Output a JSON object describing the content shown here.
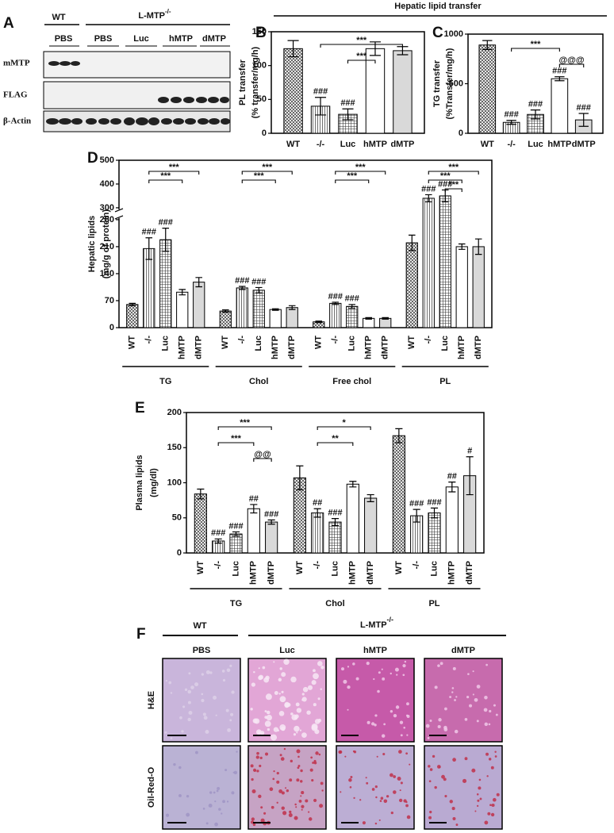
{
  "header": "Hepatic lipid transfer",
  "blot": {
    "panel": "A",
    "wt": "WT",
    "ko": {
      "text": "L-MTP",
      "sup": "-/-"
    },
    "lanes": [
      "PBS",
      "PBS",
      "Luc",
      "hMTP",
      "dMTP"
    ],
    "rows": [
      "mMTP",
      "FLAG",
      "β-Actin"
    ]
  },
  "chart_data": [
    {
      "type": "bar",
      "panel": "B",
      "ylabel": [
        "PL transfer",
        "(% transfer/mg/h)"
      ],
      "categories": [
        "WT",
        "-/-",
        "Luc",
        "hMTP",
        "dMTP"
      ],
      "values": [
        125,
        40,
        28,
        125,
        122
      ],
      "errors": [
        12,
        13,
        8,
        10,
        6
      ],
      "bar_labels": [
        null,
        "###",
        "###",
        null,
        null
      ],
      "brackets": [
        {
          "from": 1,
          "to": 4,
          "label": "***"
        },
        {
          "from": 2,
          "to": 3,
          "label": "***"
        }
      ],
      "bar_fills": [
        "crosshatch",
        "vertical",
        "grid",
        "#ffffff",
        "#d9d9d9"
      ],
      "ylim": [
        0,
        150
      ],
      "yticks": [
        0,
        50,
        100,
        150
      ]
    },
    {
      "type": "bar",
      "panel": "C",
      "ylabel": [
        "TG transfer",
        "(%Transfer/mg/h)"
      ],
      "categories": [
        "WT",
        "-/-",
        "Luc",
        "hMTP",
        "dMTP"
      ],
      "values": [
        890,
        110,
        190,
        550,
        135
      ],
      "errors": [
        45,
        20,
        45,
        20,
        65
      ],
      "bar_labels": [
        null,
        "###",
        "###",
        "###",
        "###"
      ],
      "brackets": [
        {
          "from": 1,
          "to": 3,
          "label": "***"
        },
        {
          "from": 3,
          "to": 4,
          "label": "@@@"
        }
      ],
      "bar_fills": [
        "crosshatch",
        "vertical",
        "grid",
        "#ffffff",
        "#d9d9d9"
      ],
      "ylim": [
        0,
        1000
      ],
      "yticks": [
        0,
        500,
        1000
      ]
    },
    {
      "type": "bar",
      "panel": "D",
      "ylabel": [
        "Hepatic lipids",
        "(mg/g of protein)"
      ],
      "rotate_labels": true,
      "categories": [
        "WT",
        "-/-",
        "Luc",
        "hMTP",
        "dMTP"
      ],
      "bar_fills": [
        "crosshatch",
        "vertical",
        "grid",
        "#ffffff",
        "#d9d9d9"
      ],
      "ylim": [
        0,
        500
      ],
      "axis_break": [
        280,
        300
      ],
      "yticks": [
        0,
        70,
        140,
        210,
        280,
        300,
        400,
        500
      ],
      "groups": [
        {
          "name": "TG",
          "values": [
            60,
            205,
            228,
            92,
            118
          ],
          "errors": [
            3,
            28,
            30,
            7,
            12
          ],
          "bar_labels": [
            null,
            "###",
            "###",
            null,
            null
          ],
          "brackets": [
            {
              "from": 1,
              "to": 4,
              "label": "***"
            },
            {
              "from": 1,
              "to": 3,
              "label": "***"
            }
          ]
        },
        {
          "name": "Chol",
          "values": [
            43,
            103,
            97,
            47,
            52
          ],
          "errors": [
            3,
            4,
            7,
            2,
            5
          ],
          "bar_labels": [
            null,
            "###",
            "###",
            null,
            null
          ],
          "brackets": [
            {
              "from": 1,
              "to": 4,
              "label": "***"
            },
            {
              "from": 1,
              "to": 3,
              "label": "***"
            }
          ]
        },
        {
          "name": "Free chol",
          "values": [
            15,
            63,
            55,
            24,
            24
          ],
          "errors": [
            2,
            3,
            5,
            2,
            2
          ],
          "bar_labels": [
            null,
            "###",
            "###",
            null,
            null
          ],
          "brackets": [
            {
              "from": 1,
              "to": 4,
              "label": "***"
            },
            {
              "from": 1,
              "to": 3,
              "label": "***"
            }
          ]
        },
        {
          "name": "PL",
          "values": [
            220,
            340,
            350,
            210,
            210
          ],
          "errors": [
            20,
            15,
            25,
            7,
            20
          ],
          "bar_labels": [
            null,
            "###",
            "###",
            null,
            null
          ],
          "brackets": [
            {
              "from": 1,
              "to": 4,
              "label": "***"
            },
            {
              "from": 1,
              "to": 3,
              "label": "***"
            },
            {
              "from": 2,
              "to": 3,
              "label": "***"
            }
          ]
        }
      ]
    },
    {
      "type": "bar",
      "panel": "E",
      "ylabel": [
        "Plasma lipids",
        "(mg/dl)"
      ],
      "rotate_labels": true,
      "categories": [
        "WT",
        "-/-",
        "Luc",
        "hMTP",
        "dMTP"
      ],
      "bar_fills": [
        "crosshatch",
        "vertical",
        "grid",
        "#ffffff",
        "#d9d9d9"
      ],
      "ylim": [
        0,
        200
      ],
      "yticks": [
        0,
        50,
        100,
        150,
        200
      ],
      "groups": [
        {
          "name": "TG",
          "values": [
            84,
            17,
            27,
            63,
            44
          ],
          "errors": [
            7,
            3,
            3,
            6,
            3
          ],
          "bar_labels": [
            null,
            "###",
            "###",
            "##",
            "###"
          ],
          "brackets": [
            {
              "from": 1,
              "to": 4,
              "label": "***"
            },
            {
              "from": 1,
              "to": 3,
              "label": "***"
            },
            {
              "from": 3,
              "to": 4,
              "label": "@@"
            }
          ]
        },
        {
          "name": "Chol",
          "values": [
            107,
            57,
            44,
            98,
            78
          ],
          "errors": [
            17,
            6,
            5,
            4,
            5
          ],
          "bar_labels": [
            null,
            "##",
            "###",
            null,
            null
          ],
          "brackets": [
            {
              "from": 1,
              "to": 4,
              "label": "*"
            },
            {
              "from": 1,
              "to": 3,
              "label": "**"
            }
          ]
        },
        {
          "name": "PL",
          "values": [
            167,
            53,
            57,
            94,
            110
          ],
          "errors": [
            10,
            9,
            7,
            7,
            27
          ],
          "bar_labels": [
            null,
            "###",
            "###",
            "##",
            "#"
          ],
          "brackets": []
        }
      ]
    }
  ],
  "histology": {
    "panel": "F",
    "wt": "WT",
    "ko": {
      "text": "L-MTP",
      "sup": "-/-"
    },
    "columns": [
      "PBS",
      "Luc",
      "hMTP",
      "dMTP"
    ],
    "rows": [
      "H&E",
      "Oil-Red-O"
    ]
  }
}
